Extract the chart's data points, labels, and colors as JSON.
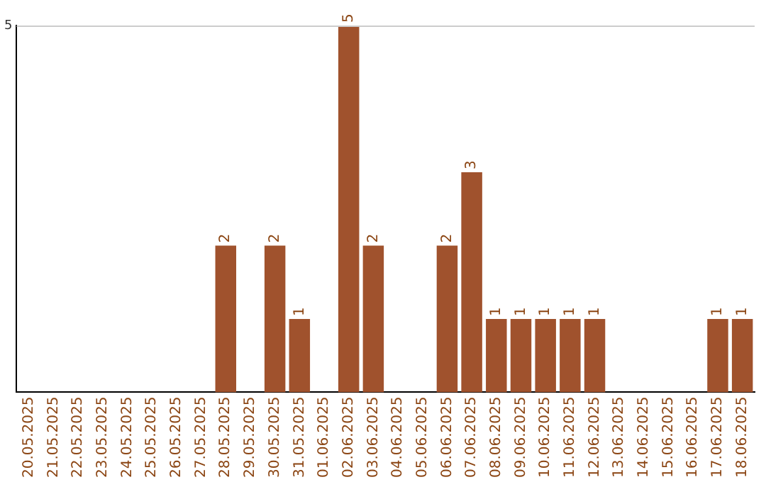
{
  "chart_data": {
    "type": "bar",
    "categories": [
      "20.05.2025",
      "21.05.2025",
      "22.05.2025",
      "23.05.2025",
      "24.05.2025",
      "25.05.2025",
      "26.05.2025",
      "27.05.2025",
      "28.05.2025",
      "29.05.2025",
      "30.05.2025",
      "31.05.2025",
      "01.06.2025",
      "02.06.2025",
      "03.06.2025",
      "04.06.2025",
      "05.06.2025",
      "06.06.2025",
      "07.06.2025",
      "08.06.2025",
      "09.06.2025",
      "10.06.2025",
      "11.06.2025",
      "12.06.2025",
      "13.06.2025",
      "14.06.2025",
      "15.06.2025",
      "16.06.2025",
      "17.06.2025",
      "18.06.2025"
    ],
    "values": [
      0,
      0,
      0,
      0,
      0,
      0,
      0,
      0,
      2,
      0,
      2,
      1,
      0,
      5,
      2,
      0,
      0,
      2,
      3,
      1,
      1,
      1,
      1,
      1,
      0,
      0,
      0,
      0,
      1,
      1
    ],
    "value_labels": [
      null,
      null,
      null,
      null,
      null,
      null,
      null,
      null,
      "2",
      null,
      "2",
      "1",
      null,
      "5",
      "2",
      null,
      null,
      "2",
      "3",
      "1",
      "1",
      "1",
      "1",
      "1",
      null,
      null,
      null,
      null,
      "1",
      "1"
    ],
    "color": "#a0522d",
    "ylim": [
      0,
      5
    ],
    "yticks": [
      5
    ],
    "legend": false
  }
}
